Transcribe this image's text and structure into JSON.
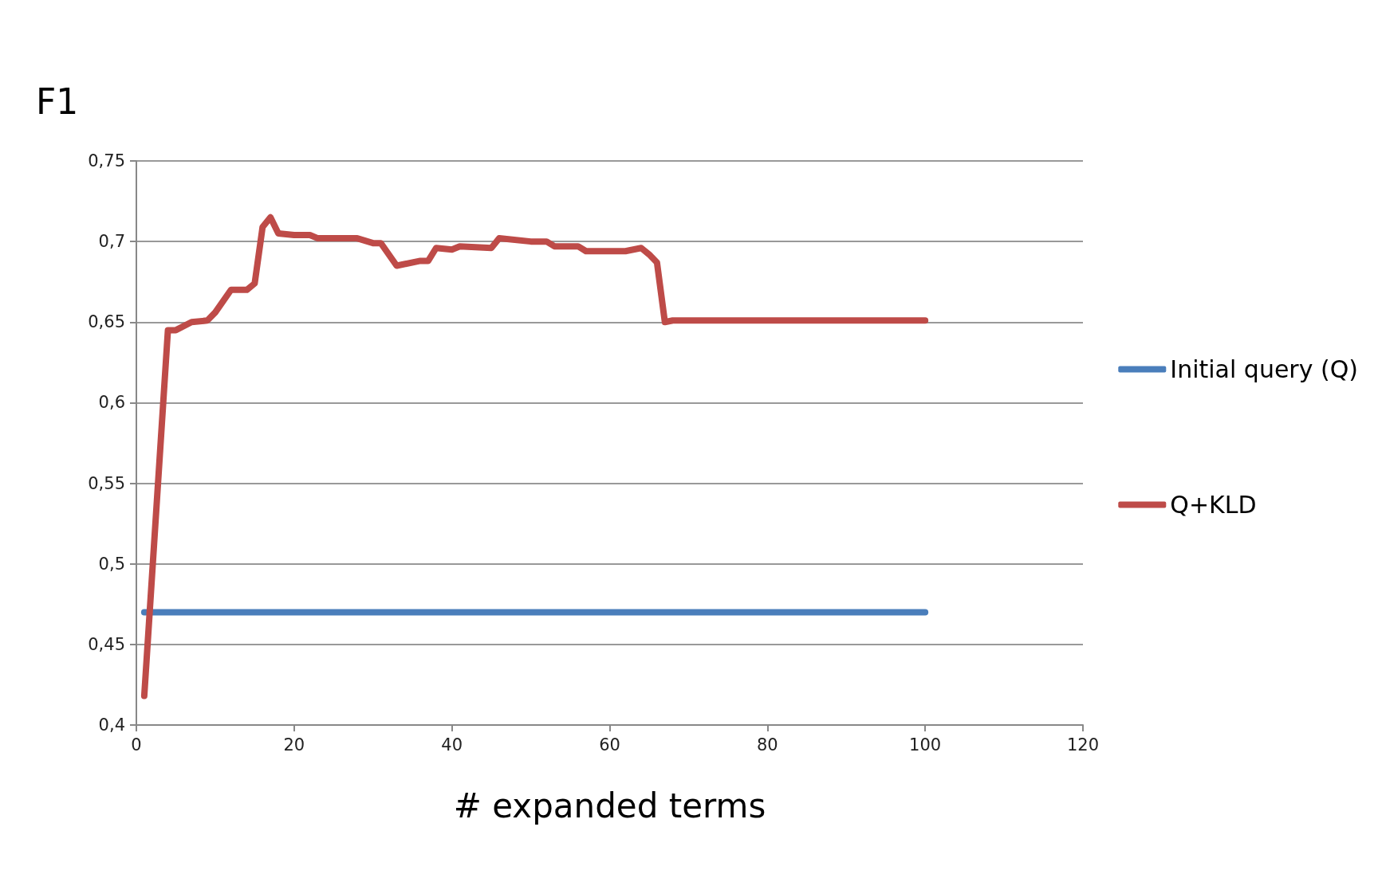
{
  "chart_data": {
    "type": "line",
    "ylabel": "F1",
    "xlabel": "# expanded terms",
    "xlim": [
      0,
      120
    ],
    "xticks": [
      0,
      20,
      40,
      60,
      80,
      100,
      120
    ],
    "ylim": [
      0.4,
      0.75
    ],
    "yticks": [
      {
        "value": 0.4,
        "label": "0,4"
      },
      {
        "value": 0.45,
        "label": "0,45"
      },
      {
        "value": 0.5,
        "label": "0,5"
      },
      {
        "value": 0.55,
        "label": "0,55"
      },
      {
        "value": 0.6,
        "label": "0,6"
      },
      {
        "value": 0.65,
        "label": "0,65"
      },
      {
        "value": 0.7,
        "label": "0,7"
      },
      {
        "value": 0.75,
        "label": "0,75"
      }
    ],
    "grid": "y",
    "legend": "right",
    "marker": "none",
    "line_style": "solid",
    "series": [
      {
        "name": "Initial query (Q)",
        "color": "#4a7ebb",
        "x": [
          1,
          100
        ],
        "values": [
          0.47,
          0.47
        ]
      },
      {
        "name": "Q+KLD",
        "color": "#be4b48",
        "x": [
          1,
          4,
          5,
          7,
          9,
          10,
          12,
          14,
          15,
          16,
          17,
          18,
          20,
          22,
          23,
          28,
          30,
          31,
          33,
          36,
          37,
          38,
          40,
          41,
          45,
          46,
          50,
          52,
          53,
          56,
          57,
          62,
          64,
          65,
          66,
          67,
          68,
          100
        ],
        "values": [
          0.418,
          0.645,
          0.645,
          0.65,
          0.651,
          0.656,
          0.67,
          0.67,
          0.674,
          0.709,
          0.715,
          0.705,
          0.704,
          0.704,
          0.702,
          0.702,
          0.699,
          0.699,
          0.685,
          0.688,
          0.688,
          0.696,
          0.695,
          0.697,
          0.696,
          0.702,
          0.7,
          0.7,
          0.697,
          0.697,
          0.694,
          0.694,
          0.696,
          0.692,
          0.687,
          0.65,
          0.651,
          0.651
        ]
      }
    ]
  }
}
